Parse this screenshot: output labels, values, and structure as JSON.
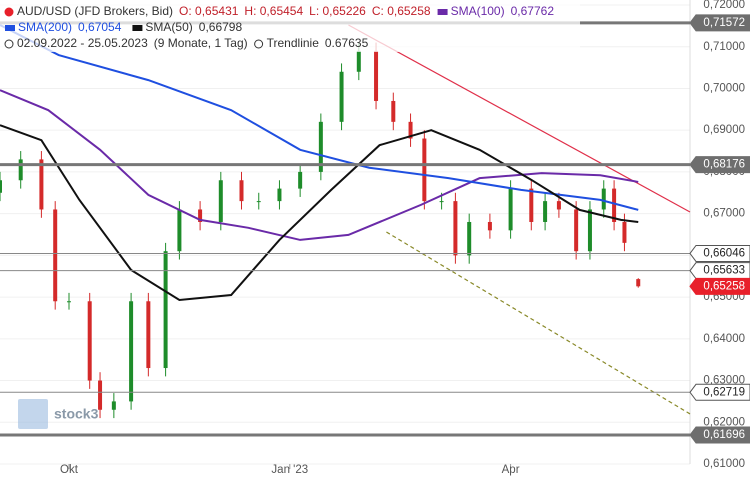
{
  "chart_data": {
    "type": "candlestick",
    "legend": {
      "symbol": "AUD/USD (JFD Brokers, Bid)",
      "ohlc": [
        {
          "value": 0.65431,
          "label": "O: 0,65431"
        },
        {
          "value": 0.65454,
          "label": "H: 0,65454"
        },
        {
          "value": 0.65226,
          "label": "L: 0,65226"
        },
        {
          "value": 0.65258,
          "label": "C: 0,65258"
        }
      ],
      "range": "02.09.2022 - 25.05.2023",
      "period": "(9 Monate, 1 Tag)",
      "trendline": {
        "name": "Trendlinie",
        "value": 0.67635
      }
    },
    "watermark": "stock3",
    "xlim": [
      0,
      200
    ],
    "xticks": [
      {
        "value": 20,
        "label": "Okt"
      },
      {
        "value": 84,
        "label": "Jan '23"
      },
      {
        "value": 148,
        "label": "Apr"
      }
    ],
    "ylim": [
      0.61,
      0.72
    ],
    "yticks": [
      {
        "value": 0.72,
        "label": "0,72000"
      },
      {
        "value": 0.71,
        "label": "0,71000"
      },
      {
        "value": 0.7,
        "label": "0,70000"
      },
      {
        "value": 0.69,
        "label": "0,69000"
      },
      {
        "value": 0.68,
        "label": "0,68000"
      },
      {
        "value": 0.67,
        "label": "0,67000"
      },
      {
        "value": 0.66,
        "label": "0,66000"
      },
      {
        "value": 0.65,
        "label": "0,65000"
      },
      {
        "value": 0.64,
        "label": "0,64000"
      },
      {
        "value": 0.63,
        "label": "0,63000"
      },
      {
        "value": 0.62,
        "label": "0,62000"
      },
      {
        "value": 0.61,
        "label": "0,61000"
      }
    ],
    "up_color": "#1e8c2a",
    "down_color": "#d42a2a",
    "candles": {
      "x": [
        0,
        6,
        12,
        16,
        20,
        26,
        29,
        33,
        38,
        43,
        48,
        52,
        58,
        64,
        70,
        75,
        81,
        87,
        93,
        99,
        104,
        109,
        114,
        119,
        123,
        128,
        132,
        136,
        142,
        148,
        154,
        158,
        162,
        167,
        171,
        175,
        178,
        181,
        185
      ],
      "open": [
        0.675,
        0.678,
        0.683,
        0.671,
        0.649,
        0.649,
        0.63,
        0.623,
        0.625,
        0.649,
        0.633,
        0.661,
        0.671,
        0.668,
        0.678,
        0.673,
        0.673,
        0.676,
        0.68,
        0.692,
        0.704,
        0.709,
        0.697,
        0.692,
        0.688,
        0.673,
        0.673,
        0.66,
        0.668,
        0.666,
        0.676,
        0.668,
        0.673,
        0.671,
        0.661,
        0.671,
        0.676,
        0.668,
        0.65431
      ],
      "high": [
        0.68,
        0.685,
        0.685,
        0.673,
        0.651,
        0.651,
        0.632,
        0.627,
        0.651,
        0.651,
        0.663,
        0.673,
        0.673,
        0.68,
        0.68,
        0.675,
        0.678,
        0.682,
        0.694,
        0.706,
        0.711,
        0.711,
        0.699,
        0.694,
        0.69,
        0.675,
        0.675,
        0.67,
        0.67,
        0.678,
        0.678,
        0.675,
        0.675,
        0.673,
        0.673,
        0.678,
        0.678,
        0.67,
        0.65454
      ],
      "low": [
        0.673,
        0.676,
        0.669,
        0.647,
        0.647,
        0.628,
        0.621,
        0.621,
        0.623,
        0.631,
        0.631,
        0.659,
        0.666,
        0.666,
        0.671,
        0.671,
        0.671,
        0.674,
        0.678,
        0.69,
        0.702,
        0.695,
        0.69,
        0.686,
        0.671,
        0.671,
        0.658,
        0.658,
        0.664,
        0.664,
        0.666,
        0.666,
        0.669,
        0.659,
        0.659,
        0.669,
        0.666,
        0.661,
        0.65226
      ],
      "close": [
        0.678,
        0.683,
        0.671,
        0.649,
        0.649,
        0.63,
        0.623,
        0.625,
        0.649,
        0.633,
        0.661,
        0.671,
        0.668,
        0.678,
        0.673,
        0.673,
        0.676,
        0.68,
        0.692,
        0.704,
        0.709,
        0.697,
        0.692,
        0.688,
        0.673,
        0.673,
        0.66,
        0.668,
        0.666,
        0.676,
        0.668,
        0.673,
        0.671,
        0.661,
        0.671,
        0.676,
        0.668,
        0.663,
        0.65258
      ]
    },
    "series": [
      {
        "name": "SMA(100)",
        "color": "#6a2aa8",
        "last": {
          "value": 0.67762,
          "label": "0,67762"
        },
        "x": [
          0,
          14,
          29,
          43,
          58,
          72,
          87,
          101,
          122,
          139,
          157,
          174,
          185
        ],
        "values": [
          0.6996,
          0.6948,
          0.6853,
          0.6745,
          0.6685,
          0.6666,
          0.6637,
          0.6649,
          0.6721,
          0.6785,
          0.6797,
          0.6792,
          0.6776
        ]
      },
      {
        "name": "SMA(200)",
        "color": "#1f4fe0",
        "last": {
          "value": 0.67054,
          "label": "0,67054"
        },
        "x": [
          0,
          17,
          43,
          67,
          87,
          107,
          130,
          151,
          174,
          185
        ],
        "values": [
          0.7152,
          0.708,
          0.702,
          0.6948,
          0.6853,
          0.681,
          0.6785,
          0.6757,
          0.6733,
          0.6709
        ]
      },
      {
        "name": "SMA(50)",
        "color": "#111111",
        "last": {
          "value": 0.66798,
          "label": "0,66798"
        },
        "x": [
          0,
          12,
          23,
          38,
          52,
          67,
          81,
          96,
          110,
          125,
          139,
          154,
          168,
          180,
          185
        ],
        "values": [
          0.6912,
          0.6876,
          0.6733,
          0.6565,
          0.6493,
          0.6505,
          0.6637,
          0.6757,
          0.6864,
          0.69,
          0.6853,
          0.6781,
          0.6709,
          0.6685,
          0.668
        ]
      }
    ],
    "trendlines": [
      {
        "color": "#e0304a",
        "dashed": false,
        "x": [
          101,
          200
        ],
        "values": [
          0.7152,
          0.6704
        ]
      },
      {
        "color": "#8a8a2a",
        "dashed": true,
        "x": [
          112,
          200
        ],
        "values": [
          0.6656,
          0.622
        ]
      }
    ],
    "levels": [
      {
        "value": 0.71572,
        "label": "0,71572",
        "style": "thick"
      },
      {
        "value": 0.68176,
        "label": "0,68176",
        "style": "thick"
      },
      {
        "value": 0.66046,
        "label": "0,66046",
        "style": "thin"
      },
      {
        "value": 0.65633,
        "label": "0,65633",
        "style": "thin"
      },
      {
        "value": 0.65258,
        "label": "0,65258",
        "style": "current"
      },
      {
        "value": 0.62719,
        "label": "0,62719",
        "style": "thin"
      },
      {
        "value": 0.61696,
        "label": "0,61696",
        "style": "thick"
      }
    ]
  }
}
